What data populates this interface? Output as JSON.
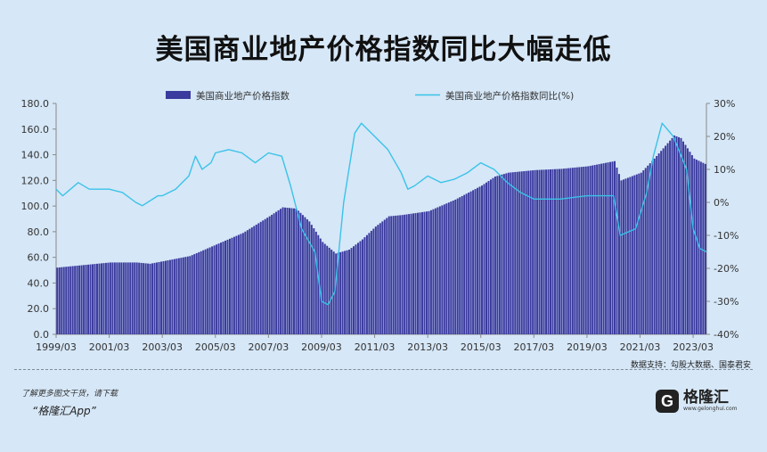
{
  "title": "美国商业地产价格指数同比大幅走低",
  "source": "数据支持：勾股大数据、国泰君安",
  "promo_line1": "了解更多图文干货，请下载",
  "promo_line2": "“格隆汇App”",
  "logo": {
    "cn": "格隆汇",
    "url": "www.gelonghui.com",
    "mark": "G"
  },
  "colors": {
    "bar": "#3b3a9e",
    "line": "#39c3e8",
    "background": "#d6e7f7"
  },
  "chart_data": {
    "type": "bar+line",
    "x_tick_labels": [
      "1999/03",
      "2001/03",
      "2003/03",
      "2005/03",
      "2007/03",
      "2009/03",
      "2011/03",
      "2013/03",
      "2015/03",
      "2017/03",
      "2019/03",
      "2021/03",
      "2023/03"
    ],
    "x_range": [
      "1999/03",
      "2023/09"
    ],
    "y_left_ticks": [
      "0.0",
      "20.0",
      "40.0",
      "60.0",
      "80.0",
      "100.0",
      "120.0",
      "140.0",
      "160.0",
      "180.0"
    ],
    "y_left_range": [
      0,
      180
    ],
    "y_right_ticks": [
      "30%",
      "20%",
      "10%",
      "0%",
      "-10%",
      "-20%",
      "-30%",
      "-40%"
    ],
    "y_right_range": [
      -40,
      30
    ],
    "legend_position": "top",
    "series": [
      {
        "name": "美国商业地产价格指数",
        "type": "bar",
        "axis": "left",
        "points": [
          [
            "1999/03",
            52
          ],
          [
            "2000/03",
            54
          ],
          [
            "2001/03",
            56
          ],
          [
            "2002/03",
            56
          ],
          [
            "2002/09",
            55
          ],
          [
            "2003/03",
            57
          ],
          [
            "2004/03",
            61
          ],
          [
            "2005/03",
            70
          ],
          [
            "2006/03",
            79
          ],
          [
            "2007/03",
            92
          ],
          [
            "2007/09",
            99
          ],
          [
            "2008/03",
            98
          ],
          [
            "2008/09",
            88
          ],
          [
            "2009/03",
            72
          ],
          [
            "2009/09",
            63
          ],
          [
            "2010/03",
            66
          ],
          [
            "2010/09",
            74
          ],
          [
            "2011/03",
            84
          ],
          [
            "2011/09",
            92
          ],
          [
            "2012/03",
            93
          ],
          [
            "2013/03",
            96
          ],
          [
            "2014/03",
            105
          ],
          [
            "2015/03",
            116
          ],
          [
            "2015/09",
            123
          ],
          [
            "2016/03",
            126
          ],
          [
            "2017/03",
            128
          ],
          [
            "2018/03",
            129
          ],
          [
            "2019/03",
            131
          ],
          [
            "2020/03",
            135
          ],
          [
            "2020/06",
            120
          ],
          [
            "2021/03",
            126
          ],
          [
            "2021/09",
            137
          ],
          [
            "2022/03",
            149
          ],
          [
            "2022/06",
            155
          ],
          [
            "2022/09",
            153
          ],
          [
            "2023/03",
            137
          ],
          [
            "2023/09",
            132
          ]
        ]
      },
      {
        "name": "美国商业地产价格指数同比(%)",
        "type": "line",
        "axis": "right",
        "points": [
          [
            "1999/03",
            4
          ],
          [
            "1999/06",
            2
          ],
          [
            "2000/01",
            6
          ],
          [
            "2000/06",
            4
          ],
          [
            "2001/03",
            4
          ],
          [
            "2001/09",
            3
          ],
          [
            "2002/03",
            0
          ],
          [
            "2002/06",
            -1
          ],
          [
            "2003/01",
            2
          ],
          [
            "2003/03",
            2
          ],
          [
            "2003/09",
            4
          ],
          [
            "2004/03",
            8
          ],
          [
            "2004/06",
            14
          ],
          [
            "2004/09",
            10
          ],
          [
            "2005/01",
            12
          ],
          [
            "2005/03",
            15
          ],
          [
            "2005/09",
            16
          ],
          [
            "2006/03",
            15
          ],
          [
            "2006/09",
            12
          ],
          [
            "2007/03",
            15
          ],
          [
            "2007/09",
            14
          ],
          [
            "2008/01",
            5
          ],
          [
            "2008/06",
            -8
          ],
          [
            "2008/12",
            -15
          ],
          [
            "2009/03",
            -30
          ],
          [
            "2009/06",
            -31
          ],
          [
            "2009/09",
            -27
          ],
          [
            "2010/01",
            0
          ],
          [
            "2010/06",
            21
          ],
          [
            "2010/09",
            24
          ],
          [
            "2011/03",
            20
          ],
          [
            "2011/09",
            16
          ],
          [
            "2012/03",
            9
          ],
          [
            "2012/06",
            4
          ],
          [
            "2012/09",
            5
          ],
          [
            "2013/03",
            8
          ],
          [
            "2013/09",
            6
          ],
          [
            "2014/03",
            7
          ],
          [
            "2014/09",
            9
          ],
          [
            "2015/03",
            12
          ],
          [
            "2015/09",
            10
          ],
          [
            "2016/03",
            6
          ],
          [
            "2016/09",
            3
          ],
          [
            "2017/03",
            1
          ],
          [
            "2018/03",
            1
          ],
          [
            "2019/03",
            2
          ],
          [
            "2020/03",
            2
          ],
          [
            "2020/06",
            -10
          ],
          [
            "2021/01",
            -8
          ],
          [
            "2021/06",
            3
          ],
          [
            "2021/09",
            14
          ],
          [
            "2022/01",
            24
          ],
          [
            "2022/06",
            20
          ],
          [
            "2022/12",
            10
          ],
          [
            "2023/03",
            -8
          ],
          [
            "2023/06",
            -14
          ],
          [
            "2023/09",
            -15
          ]
        ]
      }
    ]
  }
}
